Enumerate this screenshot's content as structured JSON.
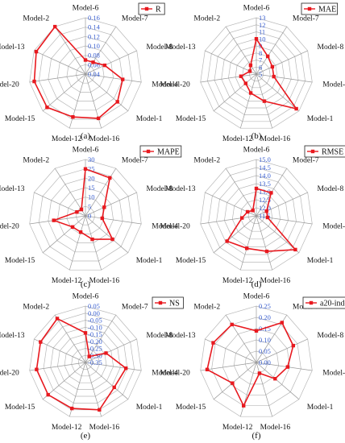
{
  "figure": {
    "panels_note": ""
  },
  "chart_data": [
    {
      "type": "radar",
      "panel_label": "(a)",
      "legend": "R",
      "categories": [
        "Model-6",
        "Model-7",
        "Model-8",
        "Model-4",
        "Model-1",
        "Model-16",
        "Model-12",
        "Model-15",
        "Model-20",
        "Model-13",
        "Model-2"
      ],
      "rlim": [
        0.04,
        0.16
      ],
      "ticks": [
        "0.04",
        "0.06",
        "0.08",
        "0.10",
        "0.12",
        "0.14",
        "0.16"
      ],
      "values": [
        0.07,
        0.07,
        0.085,
        0.12,
        0.13,
        0.138,
        0.135,
        0.148,
        0.15,
        0.155,
        0.16
      ]
    },
    {
      "type": "radar",
      "panel_label": "(b)",
      "legend": "MAE",
      "categories": [
        "Model-6",
        "Model-7",
        "Model-8",
        "Model-4",
        "Model-1",
        "Model-16",
        "Model-12",
        "Model-15",
        "Model-20",
        "Model-13",
        "Model-2"
      ],
      "rlim": [
        5,
        13
      ],
      "ticks": [
        "5",
        "6",
        "7",
        "8",
        "9",
        "10",
        "11",
        "12",
        "13"
      ],
      "values": [
        10,
        8,
        7.5,
        7.5,
        12.5,
        9.0,
        7.8,
        7.0,
        7.2,
        6.0,
        6.5
      ]
    },
    {
      "type": "radar",
      "panel_label": "(c)",
      "legend": "MAPE",
      "categories": [
        "Model-6",
        "Model-7",
        "Model-8",
        "Model-4",
        "Model-1",
        "Model-16",
        "Model-12",
        "Model-15",
        "Model-20",
        "Model-13",
        "Model-2"
      ],
      "rlim": [
        0,
        30
      ],
      "ticks": [
        "0",
        "5",
        "10",
        "15",
        "20",
        "25",
        "30"
      ],
      "values": [
        25,
        24,
        11,
        9,
        19,
        13,
        9,
        9,
        17,
        5,
        4
      ]
    },
    {
      "type": "radar",
      "panel_label": "(d)",
      "legend": "RMSE",
      "categories": [
        "Model-6",
        "Model-7",
        "Model-8",
        "Model-4",
        "Model-1",
        "Model-16",
        "Model-12",
        "Model-15",
        "Model-20",
        "Model-13",
        "Model-2"
      ],
      "rlim": [
        11.5,
        15.0
      ],
      "ticks": [
        "11.5",
        "12.0",
        "12.5",
        "13.0",
        "13.5",
        "14.0",
        "14.5",
        "15.0"
      ],
      "values": [
        13.2,
        13.2,
        12.2,
        12.2,
        14.7,
        13.8,
        13.6,
        13.9,
        12.4,
        12.1,
        11.9
      ]
    },
    {
      "type": "radar",
      "panel_label": "(e)",
      "legend": "NS",
      "categories": [
        "Model-6",
        "Model-7",
        "Model-8",
        "Model-4",
        "Model-1",
        "Model-16",
        "Model-12",
        "Model-15",
        "Model-20",
        "Model-13",
        "Model-2"
      ],
      "rlim": [
        -0.35,
        0.05
      ],
      "ticks": [
        "-0.35",
        "-0.30",
        "-0.25",
        "-0.20",
        "-0.15",
        "-0.10",
        "-0.05",
        "0.00",
        "0.05"
      ],
      "values": [
        -0.14,
        -0.3,
        -0.19,
        -0.06,
        -0.08,
        0.0,
        -0.01,
        0.0,
        0.0,
        0.0,
        0.02
      ]
    },
    {
      "type": "radar",
      "panel_label": "(f)",
      "legend": "a20-index",
      "categories": [
        "Model-6",
        "Model-7",
        "Model-8",
        "Model-4",
        "Model-1",
        "Model-16",
        "Model-12",
        "Model-15",
        "Model-20",
        "Model-13",
        "Model-2"
      ],
      "rlim": [
        0.0,
        0.25
      ],
      "ticks": [
        "0.00",
        "0.05",
        "0.10",
        "0.15",
        "0.20",
        "0.25"
      ],
      "values": [
        0.14,
        0.21,
        0.18,
        0.14,
        0.11,
        0.05,
        0.2,
        0.14,
        0.22,
        0.21,
        0.2
      ]
    }
  ],
  "colors": {
    "series": "#e8191f",
    "tick_text": "#3a5fd0",
    "grid": "#b8b8b8",
    "spoke": "#9a9a9a",
    "text": "#111111"
  }
}
